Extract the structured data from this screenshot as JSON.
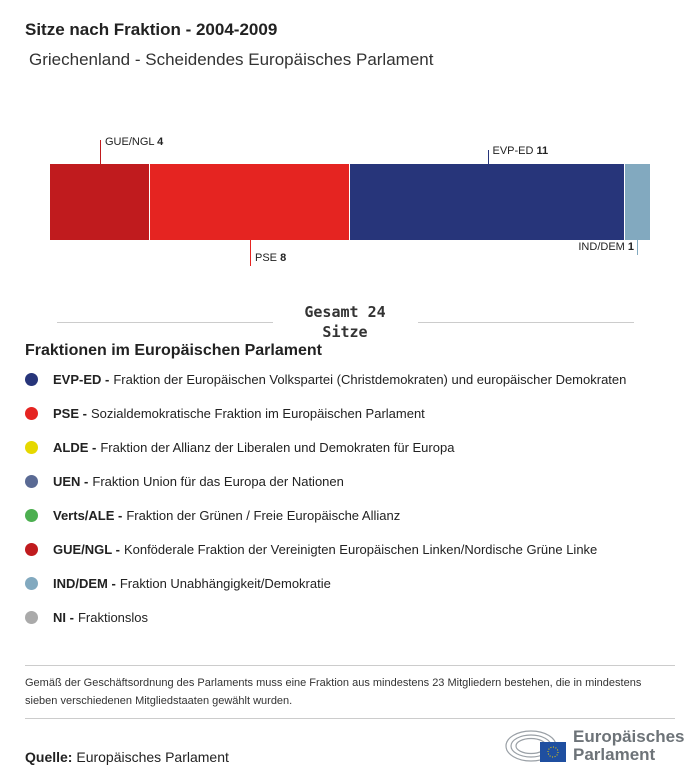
{
  "title": "Sitze nach Fraktion - 2004-2009",
  "subtitle": "Griechenland - Scheidendes Europäisches Parlament",
  "chart_data": {
    "type": "bar",
    "orientation": "horizontal-stacked",
    "categories": [
      "GUE/NGL",
      "PSE",
      "EVP-ED",
      "IND/DEM"
    ],
    "values": [
      4,
      8,
      11,
      1
    ],
    "colors": [
      "#c01b1e",
      "#e52421",
      "#27357a",
      "#82a9bf"
    ],
    "total_label": "Gesamt 24",
    "total_unit": "Sitze",
    "xlim": [
      0,
      24
    ]
  },
  "legend": {
    "heading": "Fraktionen im Europäischen Parlament",
    "items": [
      {
        "abbr": "EVP-ED -",
        "text": "Fraktion der Europäischen Volkspartei (Christdemokraten) und europäischer Demokraten",
        "color": "#27357a"
      },
      {
        "abbr": "PSE -",
        "text": "Sozialdemokratische Fraktion im Europäischen Parlament",
        "color": "#e52421"
      },
      {
        "abbr": "ALDE -",
        "text": "Fraktion der Allianz der Liberalen und Demokraten für Europa",
        "color": "#e6d800"
      },
      {
        "abbr": "UEN -",
        "text": "Fraktion Union für das Europa der Nationen",
        "color": "#5a6a94"
      },
      {
        "abbr": "Verts/ALE -",
        "text": "Fraktion der Grünen / Freie Europäische Allianz",
        "color": "#4caf50"
      },
      {
        "abbr": "GUE/NGL -",
        "text": "Konföderale Fraktion der Vereinigten Europäischen Linken/Nordische Grüne Linke",
        "color": "#c01b1e"
      },
      {
        "abbr": "IND/DEM -",
        "text": "Fraktion Unabhängigkeit/Demokratie",
        "color": "#82a9bf"
      },
      {
        "abbr": "NI -",
        "text": "Fraktionslos",
        "color": "#aaaaaa"
      }
    ]
  },
  "note": "Gemäß der Geschäftsordnung des Parlaments muss eine Fraktion aus mindestens 23 Mitgliedern bestehen, die in mindestens sieben verschiedenen Mitgliedstaaten gewählt wurden.",
  "source": {
    "label": "Quelle:",
    "value": "Europäisches Parlament"
  },
  "logo": {
    "line1": "Europäisches",
    "line2": "Parlament"
  }
}
